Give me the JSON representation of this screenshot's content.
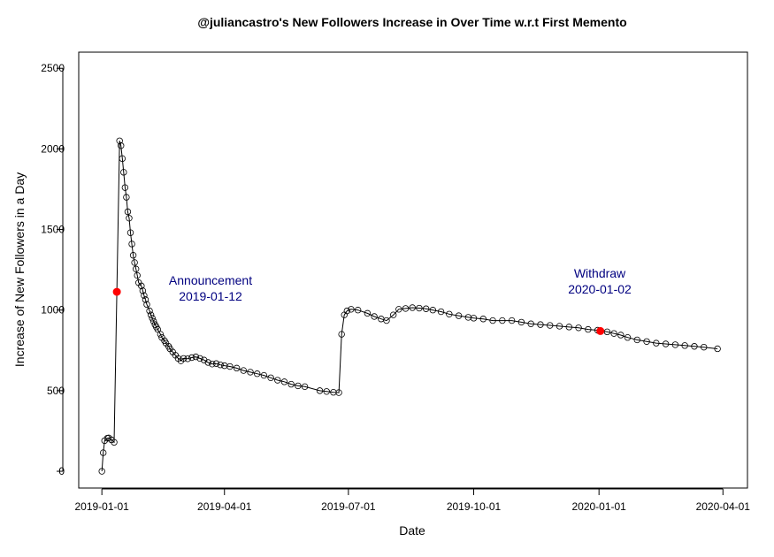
{
  "chart_data": {
    "type": "line",
    "title": "@juliancastro's New Followers Increase in Over Time w.r.t First Memento",
    "xlabel": "Date",
    "ylabel": "Increase of New Followers in a Day",
    "series": [
      {
        "color": "#000000",
        "x": [
          "2019-01-01",
          "2019-01-02",
          "2019-01-03",
          "2019-01-05",
          "2019-01-06",
          "2019-01-08",
          "2019-01-10",
          "2019-01-12",
          "2019-01-14",
          "2019-01-15",
          "2019-01-16",
          "2019-01-17",
          "2019-01-18",
          "2019-01-19",
          "2019-01-20",
          "2019-01-21",
          "2019-01-22",
          "2019-01-23",
          "2019-01-24",
          "2019-01-25",
          "2019-01-26",
          "2019-01-27",
          "2019-01-28",
          "2019-01-30",
          "2019-01-31",
          "2019-02-01",
          "2019-02-02",
          "2019-02-03",
          "2019-02-05",
          "2019-02-06",
          "2019-02-07",
          "2019-02-08",
          "2019-02-09",
          "2019-02-10",
          "2019-02-11",
          "2019-02-13",
          "2019-02-14",
          "2019-02-16",
          "2019-02-17",
          "2019-02-19",
          "2019-02-20",
          "2019-02-22",
          "2019-02-24",
          "2019-02-26",
          "2019-02-28",
          "2019-03-02",
          "2019-03-05",
          "2019-03-08",
          "2019-03-11",
          "2019-03-14",
          "2019-03-17",
          "2019-03-20",
          "2019-03-23",
          "2019-03-26",
          "2019-03-29",
          "2019-04-01",
          "2019-04-05",
          "2019-04-10",
          "2019-04-15",
          "2019-04-20",
          "2019-04-25",
          "2019-04-30",
          "2019-05-05",
          "2019-05-10",
          "2019-05-15",
          "2019-05-20",
          "2019-05-25",
          "2019-05-30",
          "2019-06-10",
          "2019-06-15",
          "2019-06-20",
          "2019-06-24",
          "2019-06-26",
          "2019-06-28",
          "2019-06-30",
          "2019-07-03",
          "2019-07-08",
          "2019-07-15",
          "2019-07-20",
          "2019-07-25",
          "2019-07-29",
          "2019-08-03",
          "2019-08-07",
          "2019-08-12",
          "2019-08-17",
          "2019-08-22",
          "2019-08-27",
          "2019-09-01",
          "2019-09-07",
          "2019-09-13",
          "2019-09-20",
          "2019-09-27",
          "2019-10-01",
          "2019-10-08",
          "2019-10-15",
          "2019-10-22",
          "2019-10-29",
          "2019-11-05",
          "2019-11-12",
          "2019-11-19",
          "2019-11-26",
          "2019-12-03",
          "2019-12-10",
          "2019-12-17",
          "2019-12-24",
          "2019-12-31",
          "2020-01-02",
          "2020-01-07",
          "2020-01-12",
          "2020-01-17",
          "2020-01-22",
          "2020-01-29",
          "2020-02-05",
          "2020-02-12",
          "2020-02-19",
          "2020-02-26",
          "2020-03-04",
          "2020-03-11",
          "2020-03-18",
          "2020-03-28"
        ],
        "values": [
          0,
          115,
          190,
          205,
          207,
          195,
          180,
          1113,
          2050,
          2020,
          1940,
          1855,
          1760,
          1700,
          1610,
          1570,
          1480,
          1410,
          1340,
          1295,
          1255,
          1215,
          1170,
          1150,
          1120,
          1090,
          1065,
          1035,
          995,
          970,
          950,
          930,
          910,
          895,
          880,
          850,
          830,
          810,
          795,
          775,
          760,
          740,
          720,
          700,
          685,
          700,
          698,
          705,
          710,
          700,
          690,
          675,
          665,
          668,
          660,
          655,
          650,
          640,
          625,
          615,
          605,
          595,
          580,
          565,
          555,
          540,
          530,
          525,
          500,
          495,
          490,
          488,
          850,
          970,
          995,
          1005,
          1000,
          980,
          960,
          945,
          935,
          970,
          1005,
          1010,
          1015,
          1012,
          1008,
          1000,
          990,
          975,
          965,
          955,
          950,
          945,
          935,
          935,
          935,
          925,
          915,
          910,
          905,
          900,
          895,
          890,
          880,
          875,
          870,
          865,
          855,
          845,
          830,
          815,
          805,
          795,
          790,
          785,
          780,
          775,
          770,
          760
        ]
      }
    ],
    "annotations": [
      {
        "text": [
          "Announcement",
          "2019-01-12"
        ],
        "x": "2019-01-12",
        "y": 1113,
        "color": "#000080",
        "point_color": "#ff0000"
      },
      {
        "text": [
          "Withdraw",
          "2020-01-02"
        ],
        "x": "2020-01-02",
        "y": 870,
        "color": "#000080",
        "point_color": "#ff0000"
      }
    ],
    "xlim": [
      "2018-12-15",
      "2020-04-19"
    ],
    "ylim": [
      -104,
      2600
    ],
    "xticks": [
      "2019-01-01",
      "2019-04-01",
      "2019-07-01",
      "2019-10-01",
      "2020-01-01",
      "2020-04-01"
    ],
    "yticks": [
      0,
      500,
      1000,
      1500,
      2000,
      2500
    ]
  }
}
